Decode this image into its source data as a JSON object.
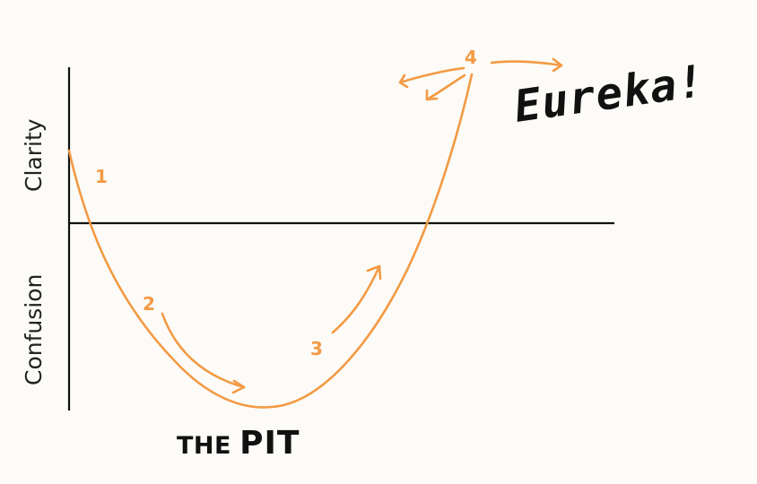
{
  "axes": {
    "upper_label": "Clarity",
    "lower_label": "Confusion"
  },
  "markers": {
    "one": "1",
    "two": "2",
    "three": "3",
    "four": "4"
  },
  "eureka": "Eureka!",
  "pit": {
    "prefix": "THE",
    "word": "PIT"
  },
  "colors": {
    "curve": "#f39a44",
    "ink": "#111111",
    "background": "#fcfbf7"
  }
}
